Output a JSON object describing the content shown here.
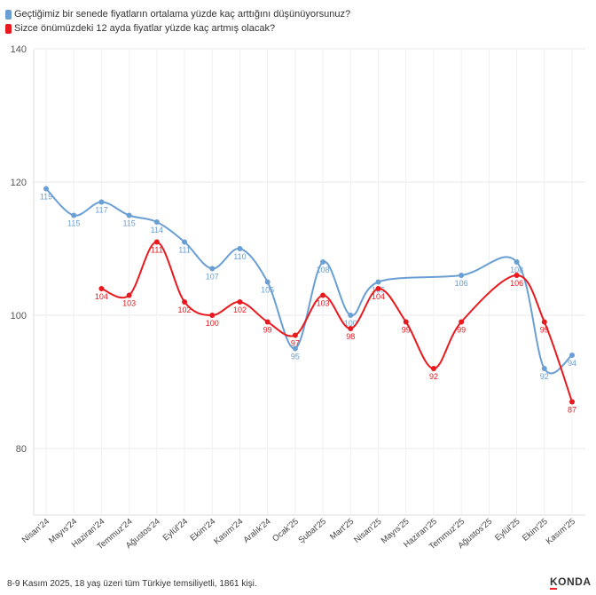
{
  "chart_data": {
    "type": "line",
    "categories": [
      "Nisan'24",
      "Mayıs'24",
      "Haziran'24",
      "Temmuz'24",
      "Ağustos'24",
      "Eylül'24",
      "Ekim'24",
      "Kasım'24",
      "Aralık'24",
      "Ocak'25",
      "Şubat'25",
      "Mart'25",
      "Nisan'25",
      "Mayıs'25",
      "Haziran'25",
      "Temmuz'25",
      "Ağustos'25",
      "Eylül'25",
      "Ekim'25",
      "Kasım'25"
    ],
    "series": [
      {
        "name": "Geçtiğimiz bir senede fiyatların ortalama yüzde kaç arttığını düşünüyorsunuz?",
        "color": "#6a9fd4",
        "values": [
          119,
          115,
          117,
          115,
          114,
          111,
          107,
          110,
          105,
          95,
          108,
          100,
          105,
          null,
          null,
          106,
          null,
          108,
          92,
          94
        ]
      },
      {
        "name": "Sizce önümüzdeki 12 ayda fiyatlar yüzde kaç artmış olacak?",
        "color": "#e8191f",
        "values": [
          null,
          null,
          104,
          103,
          111,
          102,
          100,
          102,
          99,
          97,
          103,
          98,
          104,
          99,
          92,
          99,
          null,
          106,
          99,
          87
        ]
      }
    ],
    "yticks": [
      80,
      100,
      120,
      140
    ],
    "ylim": [
      70,
      140
    ],
    "grid": true,
    "legend": "top-left"
  },
  "footer": "8-9 Kasım 2025, 18 yaş üzeri tüm Türkiye temsiliyetli, 1861 kişi.",
  "logo": "KONDA"
}
